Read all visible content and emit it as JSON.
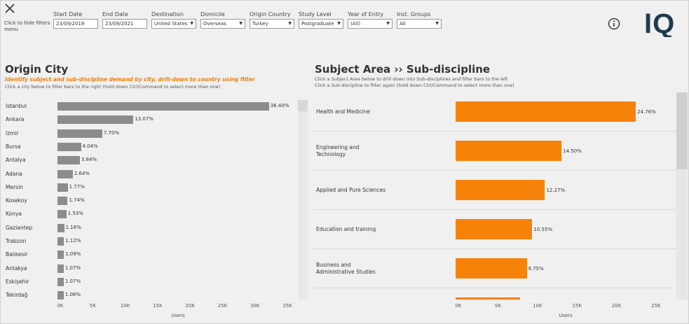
{
  "header": {
    "hide_filters_text": "Click to hide filters menu",
    "filters": [
      {
        "label": "Start Date",
        "value": "23/09/2019",
        "dropdown": false
      },
      {
        "label": "End Date",
        "value": "23/09/2021",
        "dropdown": false
      },
      {
        "label": "Destination",
        "value": "United States",
        "dropdown": true
      },
      {
        "label": "Domicile",
        "value": "Overseas",
        "dropdown": true
      },
      {
        "label": "Origin Country",
        "value": "Turkey",
        "dropdown": true
      },
      {
        "label": "Study Level",
        "value": "Postgraduate",
        "dropdown": true
      },
      {
        "label": "Year of Entry",
        "value": "(All)",
        "dropdown": true
      },
      {
        "label": "Inst. Groups",
        "value": "All",
        "dropdown": true
      }
    ],
    "logo_text": "IQ",
    "icons": {
      "close": "close-icon",
      "info": "info-icon"
    }
  },
  "left_panel": {
    "title": "Origin City",
    "subtitle": "Identify subject and sub-discipline demand by city, drill-down to country using filter",
    "hint": "Click a city below to filter bars to the right (hold down Ctrl/Command to select more than one)"
  },
  "right_panel": {
    "title": "Subject Area ›› Sub-discipline",
    "hint1": "Click a Subject Area below to drill down into Sub-disciplines and filter bars to the left",
    "hint2": "Click a Sub-discipline to filter again (hold down Ctrl/Command to select more than one)"
  },
  "colors": {
    "city_bar": "#8c8c8c",
    "subject_bar": "#f7820a",
    "accent_text": "#f47c00"
  },
  "chart_data": [
    {
      "type": "bar",
      "orientation": "horizontal",
      "categories": [
        "Istanbul",
        "Ankara",
        "Izmir",
        "Bursa",
        "Antalya",
        "Adana",
        "Mersin",
        "Kosekoy",
        "Konya",
        "Gaziantep",
        "Trabzon",
        "Balıkesir",
        "Antakya",
        "Eskişehir",
        "Tekirdağ"
      ],
      "values": [
        32600,
        11700,
        6900,
        3620,
        3440,
        2360,
        1580,
        1560,
        1370,
        1040,
        1000,
        980,
        960,
        960,
        950
      ],
      "labels": [
        "36.40%",
        "13.07%",
        "7.70%",
        "4.04%",
        "3.84%",
        "2.64%",
        "1.77%",
        "1.74%",
        "1.53%",
        "1.16%",
        "1.12%",
        "1.09%",
        "1.07%",
        "1.07%",
        "1.06%"
      ],
      "xlabel": "Users",
      "xticks": [
        "0K",
        "5K",
        "10K",
        "15K",
        "20K",
        "25K",
        "30K",
        "35K"
      ],
      "xlim": [
        0,
        35000
      ]
    },
    {
      "type": "bar",
      "orientation": "horizontal",
      "categories": [
        "Health and Medicine",
        "Engineering and Technology",
        "Applied and Pure Sciences",
        "Education and training",
        "Business and Administrative Studies",
        ""
      ],
      "values": [
        22800,
        13400,
        11300,
        9700,
        9000,
        8200
      ],
      "labels": [
        "24.76%",
        "14.50%",
        "12.27%",
        "10.55%",
        "9.75%",
        ""
      ],
      "xlabel": "Users",
      "xticks": [
        "0K",
        "5K",
        "10K",
        "15K",
        "20K",
        "25K"
      ],
      "xlim": [
        0,
        28000
      ]
    }
  ]
}
